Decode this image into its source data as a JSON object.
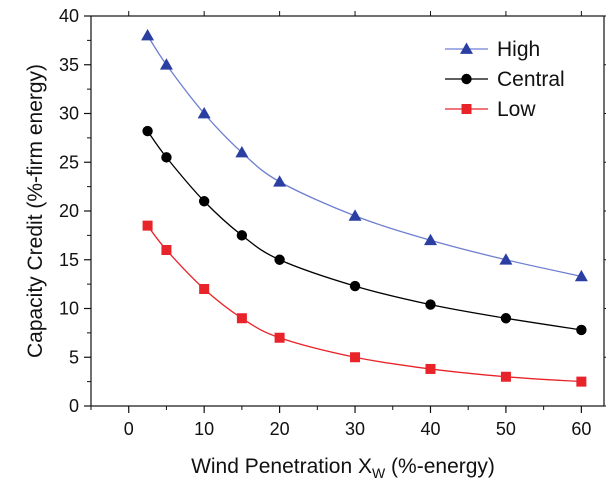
{
  "chart_data": {
    "type": "line",
    "xlabel": "Wind Penetration X",
    "xlabel_sub": "W",
    "xlabel_suffix": " (%-energy)",
    "ylabel": "Capacity Credit (%-firm energy)",
    "xlim": [
      -5,
      63
    ],
    "ylim": [
      0,
      40
    ],
    "xticks": [
      0,
      10,
      20,
      30,
      40,
      50,
      60
    ],
    "yticks": [
      0,
      5,
      10,
      15,
      20,
      25,
      30,
      35,
      40
    ],
    "grid": false,
    "legend_position": "top-right",
    "series": [
      {
        "name": "High",
        "marker": "triangle",
        "color": "#2b3fa3",
        "line_color": "#6f7fd0",
        "x": [
          2.5,
          5,
          10,
          15,
          20,
          30,
          40,
          50,
          60
        ],
        "y": [
          38,
          35,
          30,
          26,
          23,
          19.5,
          17,
          15,
          13.3
        ]
      },
      {
        "name": "Central",
        "marker": "circle",
        "color": "#000000",
        "line_color": "#000000",
        "x": [
          2.5,
          5,
          10,
          15,
          20,
          30,
          40,
          50,
          60
        ],
        "y": [
          28.2,
          25.5,
          21,
          17.5,
          15,
          12.3,
          10.4,
          9,
          7.8
        ]
      },
      {
        "name": "Low",
        "marker": "square",
        "color": "#e8232a",
        "line_color": "#e8232a",
        "x": [
          2.5,
          5,
          10,
          15,
          20,
          30,
          40,
          50,
          60
        ],
        "y": [
          18.5,
          16,
          12,
          9,
          7,
          5,
          3.8,
          3,
          2.5
        ]
      }
    ]
  }
}
